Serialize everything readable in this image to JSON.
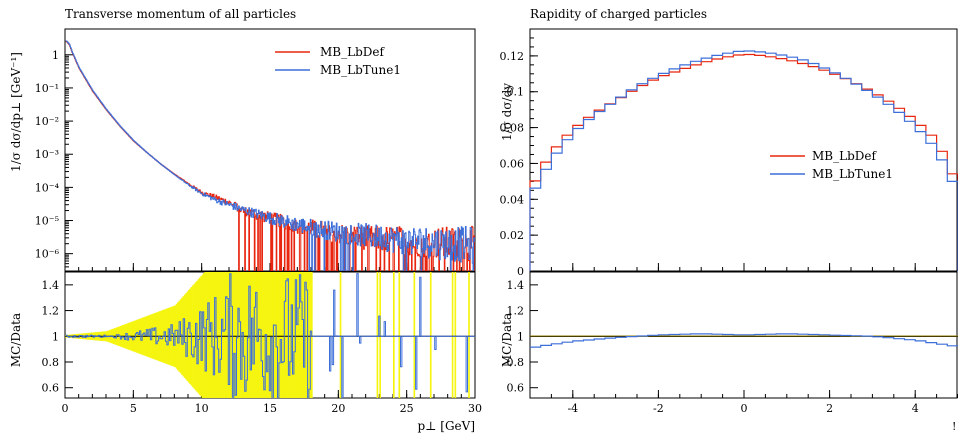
{
  "chart_data": [
    {
      "type": "line",
      "title": "Transverse momentum of all particles",
      "xlabel": "p⊥ [GeV]",
      "ylabel": "1/σ dσ/dp⊥ [GeV⁻¹]",
      "ratio_ylabel": "MC/Data",
      "xlim": [
        0,
        30
      ],
      "ylim": [
        3e-07,
        6
      ],
      "yscale": "log",
      "ratio_ylim": [
        0.52,
        1.5
      ],
      "x_ticks": [
        "0",
        "5",
        "10",
        "15",
        "20",
        "25",
        "30"
      ],
      "y_ticks": [
        {
          "value": 1,
          "label": "1"
        },
        {
          "value": 0.1,
          "label": "10⁻¹"
        },
        {
          "value": 0.01,
          "label": "10⁻²"
        },
        {
          "value": 0.001,
          "label": "10⁻³"
        },
        {
          "value": 0.0001,
          "label": "10⁻⁴"
        },
        {
          "value": 1e-05,
          "label": "10⁻⁵"
        },
        {
          "value": 1e-06,
          "label": "10⁻⁶"
        }
      ],
      "ratio_ticks": [
        "1.4",
        "1.2",
        "1",
        "0.8",
        "0.6"
      ],
      "legend": "top-right",
      "series": [
        {
          "name": "MB_LbDef",
          "color": "#e8260f",
          "x": [
            0.1,
            0.3,
            0.5,
            1,
            2,
            3,
            4,
            5,
            6,
            7,
            8,
            9,
            10,
            11,
            12,
            13,
            14,
            15,
            16,
            17,
            18,
            20,
            22,
            25,
            28,
            30
          ],
          "y": [
            2.5,
            2.0,
            1.2,
            0.4,
            0.08,
            0.022,
            0.007,
            0.0025,
            0.0011,
            0.0005,
            0.00025,
            0.00013,
            7e-05,
            5e-05,
            3.5e-05,
            2e-05,
            1.5e-05,
            1.2e-05,
            9e-06,
            7e-06,
            6e-06,
            4e-06,
            3e-06,
            2.5e-06,
            2e-06,
            1.8e-06
          ]
        },
        {
          "name": "MB_LbTune1",
          "color": "#3d6fd9",
          "x": [
            0.1,
            0.3,
            0.5,
            1,
            2,
            3,
            4,
            5,
            6,
            7,
            8,
            9,
            10,
            11,
            12,
            13,
            14,
            15,
            16,
            17,
            18,
            20,
            22,
            25,
            28,
            30
          ],
          "y": [
            2.6,
            2.1,
            1.25,
            0.42,
            0.085,
            0.023,
            0.0072,
            0.0026,
            0.0011,
            0.0005,
            0.00024,
            0.00012,
            6.5e-05,
            4.2e-05,
            3e-05,
            2.1e-05,
            1.6e-05,
            1.2e-05,
            9.5e-06,
            7.5e-06,
            6.2e-06,
            4.5e-06,
            3.5e-06,
            2.5e-06,
            2e-06,
            1.8e-06
          ]
        }
      ],
      "ratio_band_color": "#f5f50f"
    },
    {
      "type": "line",
      "title": "Rapidity of charged particles",
      "xlabel": "",
      "ylabel": "1/σ dσ/dy",
      "ratio_ylabel": "MC/Data",
      "xlim": [
        -5,
        5
      ],
      "ylim": [
        0,
        0.135
      ],
      "ratio_ylim": [
        0.52,
        1.5
      ],
      "x_ticks": [
        "-4",
        "-2",
        "0",
        "2",
        "4"
      ],
      "y_ticks": [
        "0",
        "0.02",
        "0.04",
        "0.06",
        "0.08",
        "0.1",
        "0.12"
      ],
      "ratio_ticks": [
        "1.4",
        "1.2",
        "1",
        "0.8",
        "0.6"
      ],
      "legend": "middle-right",
      "series": [
        {
          "name": "MB_LbDef",
          "color": "#e8260f",
          "x": [
            -5,
            -4.5,
            -4,
            -3.5,
            -3,
            -2.5,
            -2,
            -1.5,
            -1,
            -0.5,
            0,
            0.5,
            1,
            1.5,
            2,
            2.5,
            3,
            3.5,
            4,
            4.5,
            5
          ],
          "y": [
            0.045,
            0.066,
            0.079,
            0.088,
            0.095,
            0.102,
            0.108,
            0.112,
            0.116,
            0.119,
            0.121,
            0.12,
            0.118,
            0.115,
            0.111,
            0.106,
            0.1,
            0.093,
            0.084,
            0.073,
            0.048
          ]
        },
        {
          "name": "MB_LbTune1",
          "color": "#3d6fd9",
          "x": [
            -5,
            -4.5,
            -4,
            -3.5,
            -3,
            -2.5,
            -2,
            -1.5,
            -1,
            -0.5,
            0,
            0.5,
            1,
            1.5,
            2,
            2.5,
            3,
            3.5,
            4,
            4.5,
            5
          ],
          "y": [
            0.041,
            0.062,
            0.077,
            0.087,
            0.095,
            0.103,
            0.109,
            0.114,
            0.118,
            0.121,
            0.123,
            0.122,
            0.12,
            0.117,
            0.112,
            0.106,
            0.099,
            0.091,
            0.081,
            0.068,
            0.044
          ]
        }
      ],
      "ratio_series": {
        "x": [
          -5,
          -4,
          -3,
          -2,
          -1,
          0,
          1,
          2,
          3,
          4,
          5
        ],
        "y": [
          0.91,
          0.96,
          0.99,
          1.01,
          1.02,
          1.01,
          1.02,
          1.01,
          1.0,
          0.97,
          0.92
        ]
      }
    }
  ],
  "extra": {
    "right_edge_label": "!"
  }
}
